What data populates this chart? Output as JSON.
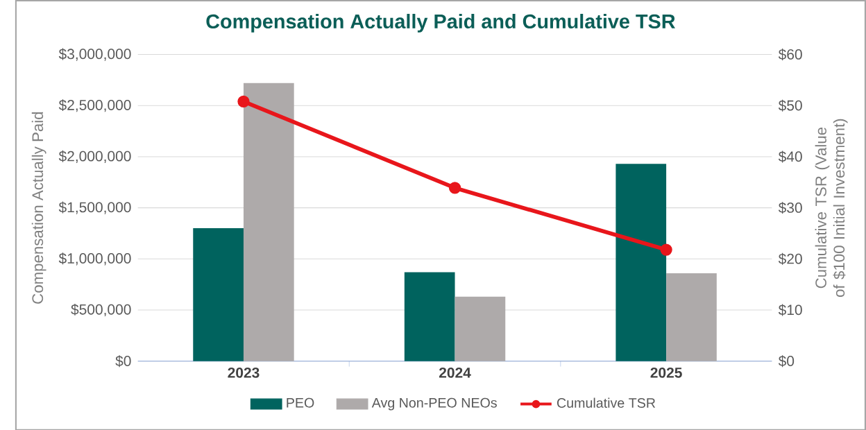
{
  "chart_data": {
    "type": "bar",
    "title": "Compensation Actually Paid and Cumulative TSR",
    "categories": [
      "2023",
      "2024",
      "2025"
    ],
    "series": [
      {
        "name": "PEO",
        "color": "#00635e",
        "values": [
          1300000,
          870000,
          1930000
        ]
      },
      {
        "name": "Avg Non-PEO NEOs",
        "color": "#aeaaaa",
        "values": [
          2720000,
          630000,
          860000
        ]
      },
      {
        "name": "Cumulative TSR",
        "type": "line",
        "axis": "y2",
        "color": "#e8161b",
        "marker": "circle",
        "values": [
          50.8,
          33.9,
          21.8
        ]
      }
    ],
    "ylabel": "Compensation Actually Paid",
    "y2label": "Cumulative TSR (Value of $100 Initial Investment)",
    "ylim": [
      0,
      3000000
    ],
    "yticks": [
      {
        "value": 0,
        "label": "$0"
      },
      {
        "value": 500000,
        "label": "$500,000"
      },
      {
        "value": 1000000,
        "label": "$1,000,000"
      },
      {
        "value": 1500000,
        "label": "$1,500,000"
      },
      {
        "value": 2000000,
        "label": "$2,000,000"
      },
      {
        "value": 2500000,
        "label": "$2,500,000"
      },
      {
        "value": 3000000,
        "label": "$3,000,000"
      }
    ],
    "y2lim": [
      0,
      60
    ],
    "y2ticks": [
      {
        "value": 0,
        "label": "$0"
      },
      {
        "value": 10,
        "label": "$10"
      },
      {
        "value": 20,
        "label": "$20"
      },
      {
        "value": 30,
        "label": "$30"
      },
      {
        "value": 40,
        "label": "$40"
      },
      {
        "value": 50,
        "label": "$50"
      },
      {
        "value": 60,
        "label": "$60"
      }
    ],
    "grid": "y",
    "legend": "bottom"
  }
}
